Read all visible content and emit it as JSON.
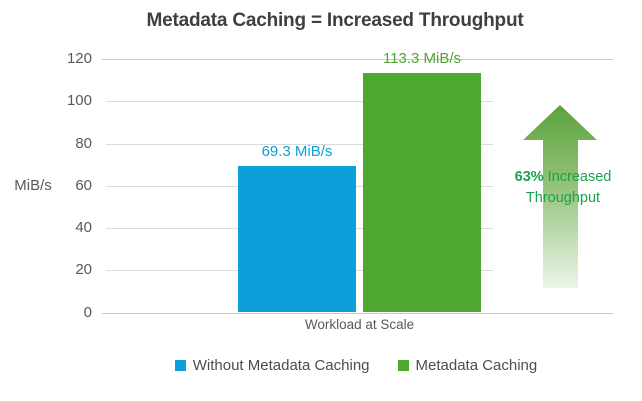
{
  "title": "Metadata Caching = Increased Throughput",
  "chart_data": {
    "type": "bar",
    "categories": [
      "Workload at Scale"
    ],
    "series": [
      {
        "name": "Without Metadata Caching",
        "values": [
          69.3
        ],
        "data_label": "69.3 MiB/s",
        "color": "#0d9fd9"
      },
      {
        "name": "Metadata Caching",
        "values": [
          113.3
        ],
        "data_label": "113.3 MiB/s",
        "color": "#4ea72e"
      }
    ],
    "xlabel": "",
    "ylabel": "MiB/s",
    "ylim": [
      0,
      120
    ],
    "yticks": [
      0,
      20,
      40,
      60,
      80,
      100,
      120
    ],
    "grid": true,
    "legend_position": "bottom"
  },
  "annotation": {
    "line1_bold": "63%",
    "line1_rest": " Increased",
    "line2": "Throughput",
    "text_color": "#1aa24e",
    "arrow_color_top": "#5ea13f",
    "arrow_color_mid": "#8fc176",
    "arrow_color_bottom": "#edf5e8"
  }
}
